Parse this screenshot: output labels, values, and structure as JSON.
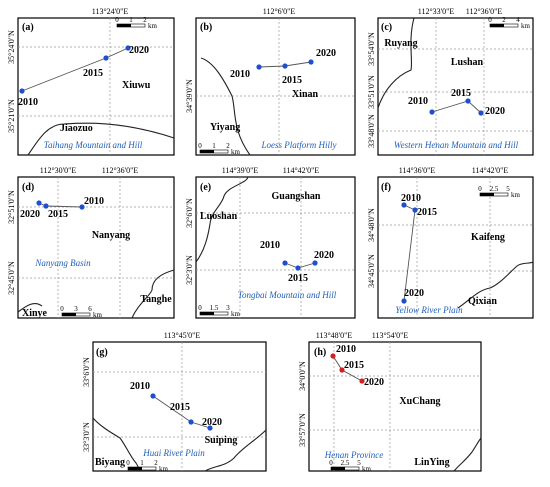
{
  "panels": [
    {
      "id": "(a)",
      "region": "Taihang Mountain and Hill",
      "top_ticks": [
        "113°24'0\"E"
      ],
      "left_ticks": [
        "35°24'0\"N",
        "35°21'0\"N"
      ],
      "places": [
        "Xiuwu",
        "Jiaozuo"
      ],
      "years": [
        "2010",
        "2015",
        "2020"
      ],
      "scale": [
        "0",
        "1",
        "2",
        "km"
      ]
    },
    {
      "id": "(b)",
      "region": "Loess Platform Hilly",
      "top_ticks": [
        "112°6'0\"E"
      ],
      "left_ticks": [
        "34°39'0\"N"
      ],
      "places": [
        "Xinan",
        "Yiyang"
      ],
      "years": [
        "2010",
        "2015",
        "2020"
      ],
      "scale": [
        "0",
        "1",
        "2",
        "km"
      ]
    },
    {
      "id": "(c)",
      "region": "Western Henan Mountain and Hill",
      "top_ticks": [
        "112°33'0\"E",
        "112°36'0\"E"
      ],
      "left_ticks": [
        "33°54'0\"N",
        "33°51'0\"N",
        "33°48'0\"N"
      ],
      "places": [
        "Ruyang",
        "Lushan"
      ],
      "years": [
        "2010",
        "2015",
        "2020"
      ],
      "scale": [
        "0",
        "2",
        "4",
        "km"
      ]
    },
    {
      "id": "(d)",
      "region": "Nanyang Basin",
      "top_ticks": [
        "112°30'0\"E",
        "112°36'0\"E"
      ],
      "left_ticks": [
        "32°51'0\"N",
        "32°45'0\"N"
      ],
      "places": [
        "Nanyang",
        "Tanghe",
        "Xinye"
      ],
      "years": [
        "2010",
        "2015",
        "2020"
      ],
      "scale": [
        "0",
        "3",
        "6",
        "km"
      ]
    },
    {
      "id": "(e)",
      "region": "Tongbai Mountain and Hill",
      "top_ticks": [
        "114°39'0\"E",
        "114°42'0\"E"
      ],
      "left_ticks": [
        "32°6'0\"N",
        "32°3'0\"N"
      ],
      "places": [
        "Guangshan",
        "Luoshan"
      ],
      "years": [
        "2010",
        "2015",
        "2020"
      ],
      "scale": [
        "0",
        "1.5",
        "3",
        "km"
      ]
    },
    {
      "id": "(f)",
      "region": "Yellow River Plain",
      "top_ticks": [
        "114°36'0\"E",
        "114°42'0\"E"
      ],
      "left_ticks": [
        "34°48'0\"N",
        "34°45'0\"N"
      ],
      "places": [
        "Kaifeng",
        "Qixian"
      ],
      "years": [
        "2010",
        "2015",
        "2020"
      ],
      "scale": [
        "0",
        "2.5",
        "5",
        "km"
      ]
    },
    {
      "id": "(g)",
      "region": "Huai River Plain",
      "top_ticks": [
        "113°45'0\"E"
      ],
      "left_ticks": [
        "33°6'0\"N",
        "33°3'0\"N"
      ],
      "places": [
        "Suiping",
        "Biyang"
      ],
      "years": [
        "2010",
        "2015",
        "2020"
      ],
      "scale": [
        "0",
        "1",
        "2",
        "km"
      ]
    },
    {
      "id": "(h)",
      "region": "Henan Province",
      "top_ticks": [
        "113°48'0\"E",
        "113°54'0\"E"
      ],
      "left_ticks": [
        "34°0'0\"N",
        "33°57'0\"N"
      ],
      "places": [
        "XuChang",
        "LinYing"
      ],
      "years": [
        "2010",
        "2015",
        "2020"
      ],
      "scale": [
        "0",
        "2.5",
        "5",
        "km"
      ]
    }
  ],
  "colors": {
    "point_blue": "#1f4fd0",
    "point_red": "#d42020",
    "region_label": "#1f5fb8",
    "line": "#555555"
  }
}
